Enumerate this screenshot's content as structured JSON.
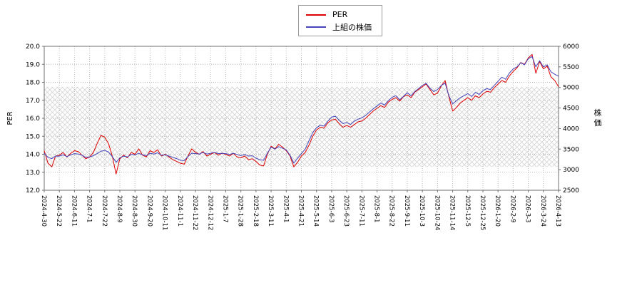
{
  "chart_data": {
    "type": "line",
    "title": "",
    "points_per_label": 4,
    "x_labels": [
      "2024-4-30",
      "2024-5-22",
      "2024-6-11",
      "2024-7-1",
      "2024-7-22",
      "2024-8-9",
      "2024-8-30",
      "2024-9-20",
      "2024-10-11",
      "2024-11-1",
      "2024-11-22",
      "2024-12-12",
      "2025-1-7",
      "2025-1-28",
      "2025-2-18",
      "2025-3-11",
      "2025-4-1",
      "2025-4-21",
      "2025-5-14",
      "2025-6-3",
      "2025-6-23",
      "2025-7-11",
      "2025-8-1",
      "2025-8-22",
      "2025-9-11",
      "2025-10-3",
      "2025-10-24",
      "2025-11-14",
      "2025-12-5",
      "2025-12-25",
      "2026-1-20",
      "2026-2-9",
      "2026-3-3",
      "2026-3-24",
      "2026-4-13"
    ],
    "y_left": {
      "label": "PER",
      "min": 12,
      "max": 20,
      "ticks": [
        "12.0",
        "13.0",
        "14.0",
        "15.0",
        "16.0",
        "17.0",
        "18.0",
        "19.0",
        "20.0"
      ]
    },
    "y_right": {
      "label": "株価",
      "min": 2500,
      "max": 6000,
      "ticks": [
        "2500",
        "3000",
        "3500",
        "4000",
        "4500",
        "5000",
        "5500",
        "6000"
      ]
    },
    "band": {
      "axis": "left",
      "from": 13.3,
      "to": 17.75
    },
    "colors": {
      "grid": "#bbbbbb",
      "frame": "#707070",
      "hatch": "#cccccc"
    },
    "legend_position": "top-center",
    "grid": true,
    "series": [
      {
        "name": "PER",
        "color": "#dd0000",
        "axis": "left",
        "values": [
          14.2,
          13.5,
          13.3,
          13.9,
          13.95,
          14.1,
          13.85,
          14.05,
          14.2,
          14.15,
          13.95,
          13.75,
          13.85,
          14.1,
          14.6,
          15.05,
          14.95,
          14.6,
          13.9,
          12.9,
          13.75,
          13.95,
          13.8,
          14.1,
          14.0,
          14.3,
          13.95,
          13.85,
          14.2,
          14.1,
          14.25,
          13.9,
          14.0,
          13.85,
          13.7,
          13.6,
          13.5,
          13.45,
          13.9,
          14.3,
          14.1,
          14.0,
          14.15,
          13.9,
          14.0,
          14.1,
          13.95,
          14.05,
          14.0,
          13.9,
          14.05,
          13.85,
          13.8,
          13.9,
          13.7,
          13.75,
          13.6,
          13.4,
          13.35,
          14.0,
          14.45,
          14.3,
          14.55,
          14.4,
          14.2,
          13.9,
          13.3,
          13.55,
          13.9,
          14.1,
          14.5,
          15.0,
          15.35,
          15.5,
          15.45,
          15.75,
          15.9,
          15.95,
          15.7,
          15.5,
          15.6,
          15.5,
          15.65,
          15.8,
          15.85,
          16.0,
          16.2,
          16.4,
          16.55,
          16.7,
          16.6,
          16.9,
          17.05,
          17.15,
          16.95,
          17.2,
          17.3,
          17.15,
          17.45,
          17.6,
          17.75,
          17.9,
          17.6,
          17.3,
          17.4,
          17.8,
          18.1,
          17.2,
          16.4,
          16.6,
          16.85,
          17.0,
          17.15,
          17.0,
          17.25,
          17.15,
          17.35,
          17.5,
          17.45,
          17.7,
          17.9,
          18.1,
          18.0,
          18.35,
          18.6,
          18.8,
          19.1,
          19.0,
          19.35,
          19.55,
          18.5,
          19.15,
          18.75,
          18.9,
          18.3,
          18.1,
          17.75
        ]
      },
      {
        "name": "上組の株価",
        "color": "#4444bb",
        "axis": "right",
        "values": [
          3400,
          3300,
          3270,
          3330,
          3330,
          3360,
          3320,
          3360,
          3390,
          3380,
          3350,
          3300,
          3310,
          3340,
          3390,
          3450,
          3470,
          3430,
          3320,
          3180,
          3290,
          3330,
          3310,
          3370,
          3360,
          3400,
          3360,
          3340,
          3400,
          3380,
          3410,
          3350,
          3360,
          3330,
          3300,
          3270,
          3230,
          3220,
          3320,
          3400,
          3390,
          3380,
          3420,
          3380,
          3400,
          3420,
          3390,
          3400,
          3390,
          3370,
          3400,
          3370,
          3340,
          3370,
          3330,
          3340,
          3280,
          3240,
          3230,
          3400,
          3550,
          3500,
          3560,
          3520,
          3480,
          3350,
          3160,
          3280,
          3390,
          3500,
          3700,
          3900,
          4020,
          4080,
          4060,
          4180,
          4280,
          4300,
          4200,
          4120,
          4150,
          4100,
          4180,
          4230,
          4260,
          4320,
          4400,
          4480,
          4550,
          4620,
          4570,
          4680,
          4760,
          4800,
          4700,
          4780,
          4870,
          4800,
          4900,
          4970,
          5050,
          5100,
          4980,
          4900,
          4950,
          5050,
          5100,
          4800,
          4600,
          4680,
          4750,
          4800,
          4850,
          4780,
          4880,
          4830,
          4920,
          4970,
          4950,
          5050,
          5150,
          5250,
          5200,
          5350,
          5450,
          5500,
          5600,
          5550,
          5700,
          5750,
          5500,
          5650,
          5500,
          5550,
          5380,
          5320,
          5270
        ]
      }
    ]
  }
}
